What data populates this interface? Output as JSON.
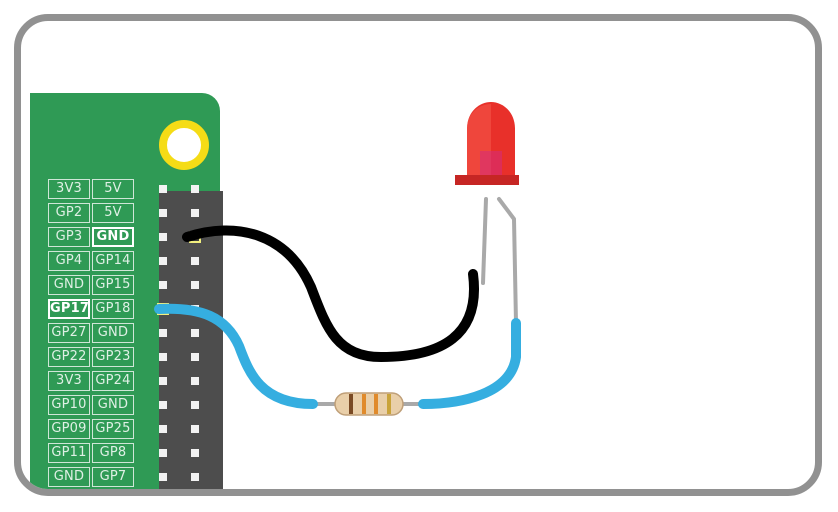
{
  "gpio_header": {
    "rows": [
      {
        "left": "3V3",
        "right": "5V"
      },
      {
        "left": "GP2",
        "right": "5V"
      },
      {
        "left": "GP3",
        "right": "GND"
      },
      {
        "left": "GP4",
        "right": "GP14"
      },
      {
        "left": "GND",
        "right": "GP15"
      },
      {
        "left": "GP17",
        "right": "GP18"
      },
      {
        "left": "GP27",
        "right": "GND"
      },
      {
        "left": "GP22",
        "right": "GP23"
      },
      {
        "left": "3V3",
        "right": "GP24"
      },
      {
        "left": "GP10",
        "right": "GND"
      },
      {
        "left": "GP09",
        "right": "GP25"
      },
      {
        "left": "GP11",
        "right": "GP8"
      },
      {
        "left": "GND",
        "right": "GP7"
      }
    ],
    "highlighted": [
      "GP17",
      "GND"
    ]
  },
  "colors": {
    "board": "#2f9a55",
    "header": "#4d4d4d",
    "mount_ring": "#f5dc16",
    "wire_ground": "#000000",
    "wire_signal": "#35aee0",
    "led": "#e8302a",
    "frame": "#919191"
  },
  "components": {
    "led": "red-led",
    "resistor": "resistor",
    "wires": [
      "black-ground-wire",
      "blue-signal-wire"
    ]
  }
}
